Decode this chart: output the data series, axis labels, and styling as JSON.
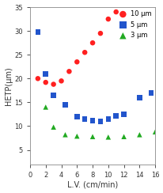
{
  "title": "",
  "xlabel": "L.V. (cm/min)",
  "ylabel": "HETP(μm)",
  "xlim": [
    0,
    16
  ],
  "ylim": [
    2,
    35
  ],
  "xticks": [
    0,
    2,
    4,
    6,
    8,
    10,
    12,
    14,
    16
  ],
  "yticks": [
    5,
    10,
    15,
    20,
    25,
    30,
    35
  ],
  "series": [
    {
      "label": "10 μm",
      "color": "#ff2020",
      "marker": "o",
      "x": [
        1.0,
        2.0,
        3.0,
        4.0,
        5.0,
        6.0,
        7.0,
        8.0,
        9.0,
        10.0,
        11.0
      ],
      "y": [
        20.0,
        19.2,
        18.8,
        19.5,
        21.5,
        23.5,
        25.5,
        27.5,
        29.5,
        32.5,
        34.0
      ],
      "fit_x_start": 0.5,
      "fit_x_end": 11.5
    },
    {
      "label": "5 μm",
      "color": "#2255cc",
      "marker": "s",
      "x": [
        1.0,
        2.0,
        3.0,
        4.5,
        6.0,
        7.0,
        8.0,
        9.0,
        10.0,
        11.0,
        12.0,
        14.0,
        15.5
      ],
      "y": [
        29.8,
        21.0,
        16.5,
        14.5,
        12.0,
        11.5,
        11.2,
        11.0,
        11.5,
        12.2,
        12.5,
        16.0,
        17.0
      ],
      "fit_x_start": 0.5,
      "fit_x_end": 16.0
    },
    {
      "label": "3 μm",
      "color": "#22aa22",
      "marker": "^",
      "x": [
        2.0,
        3.0,
        4.5,
        6.0,
        8.0,
        10.0,
        12.0,
        14.0,
        16.0
      ],
      "y": [
        14.0,
        9.8,
        8.2,
        7.9,
        7.8,
        7.7,
        7.8,
        8.2,
        8.8
      ],
      "fit_x_start": 1.0,
      "fit_x_end": 16.0
    }
  ],
  "curve_color": "#1a1a1a",
  "background_color": "#ffffff",
  "legend_loc": "upper right"
}
